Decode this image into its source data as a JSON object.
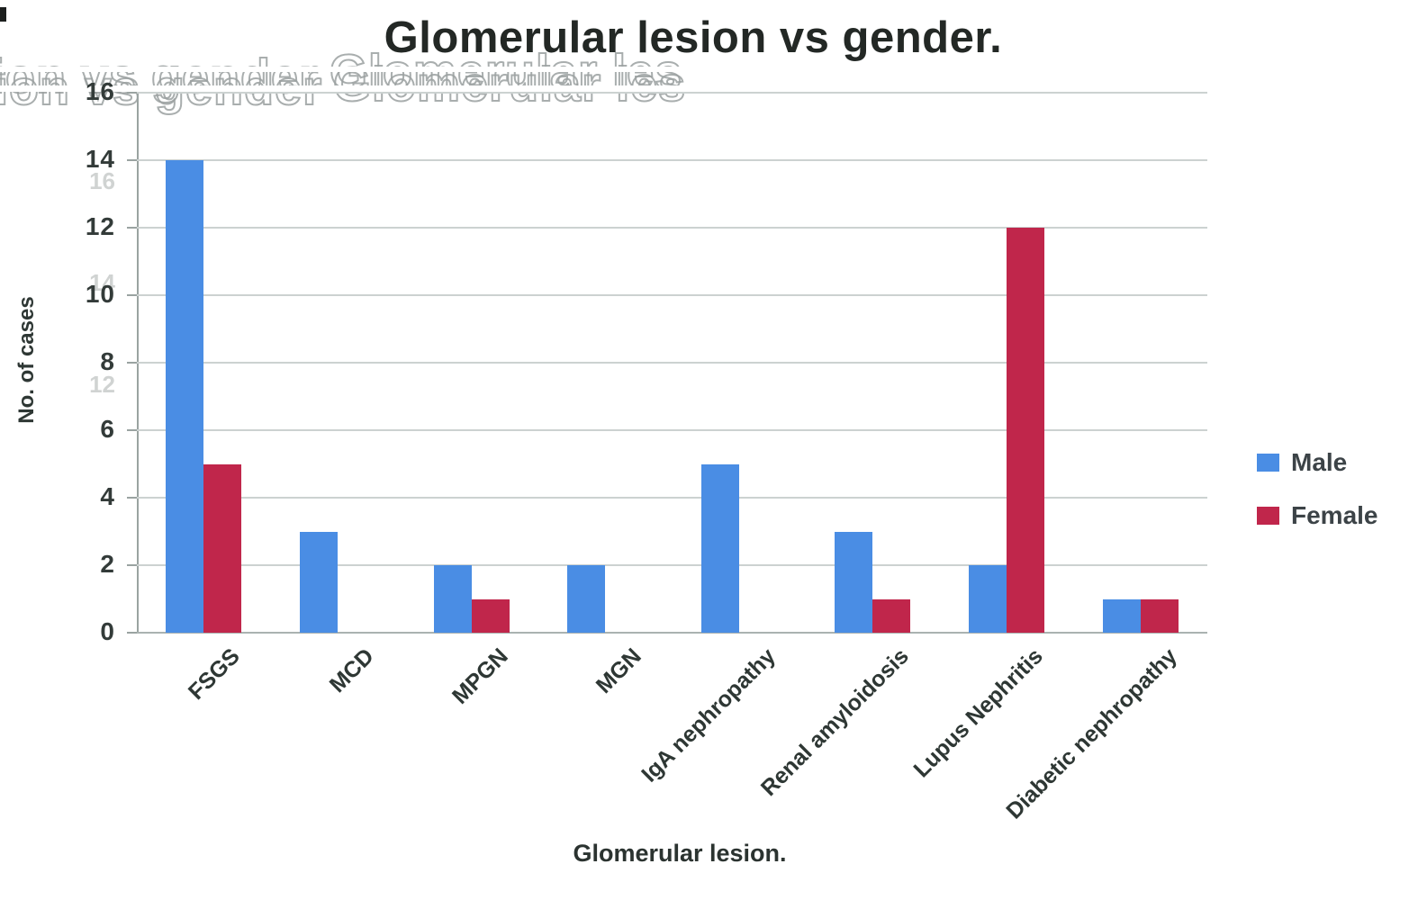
{
  "figure": {
    "title": "Glomerular lesion vs gender.",
    "x_axis_title": "Glomerular lesion.",
    "y_axis_title": "No. of cases"
  },
  "ghost_artifacts": {
    "left_text": "ion vs gender",
    "right_text": "Glomerular les",
    "ghost_y_labels": [
      "16",
      "14",
      "12"
    ]
  },
  "chart_data": {
    "type": "bar",
    "title": "Glomerular lesion vs gender.",
    "xlabel": "Glomerular lesion.",
    "ylabel": "No. of cases",
    "categories": [
      "FSGS",
      "MCD",
      "MPGN",
      "MGN",
      "IgA nephropathy",
      "Renal amyloidosis",
      "Lupus Nephritis",
      "Diabetic nephropathy"
    ],
    "series": [
      {
        "name": "Male",
        "color": "#4a8de4",
        "values": [
          14,
          3,
          2,
          2,
          5,
          3,
          2,
          1
        ]
      },
      {
        "name": "Female",
        "color": "#c0264b",
        "values": [
          5,
          0,
          1,
          0,
          0,
          1,
          12,
          1
        ]
      }
    ],
    "ylim": [
      0,
      16
    ],
    "yticks": [
      0,
      2,
      4,
      6,
      8,
      10,
      12,
      14,
      16
    ],
    "grid": true,
    "legend_position": "right"
  },
  "legend": {
    "items": [
      {
        "label": "Male",
        "color": "#4a8de4"
      },
      {
        "label": "Female",
        "color": "#c0264b"
      }
    ]
  },
  "colors": {
    "male": "#4a8de4",
    "female": "#c0264b",
    "gridline": "#ccd2d1",
    "axis_line": "#9aa3a1",
    "tick_label": "#333b39",
    "title": "#232825",
    "ghost": "#9ba1a1"
  }
}
